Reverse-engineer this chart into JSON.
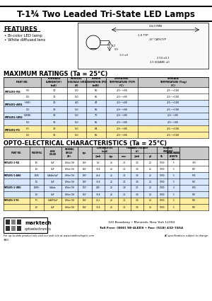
{
  "title": "T-1¾ Two Leaded Tri-State LED Lamps",
  "features": [
    "Bi-color LED lamp",
    "White diffused lens"
  ],
  "bg_color": "#ffffff",
  "max_ratings_title": "MAXIMUM RATINGS (Ta = 25°C)",
  "opto_title": "OPTO-ELECTRICAL CHARACTERISTICS (Ta = 25°C)",
  "max_ratings_rows": [
    [
      "MT5491-RG",
      "(R)",
      "30",
      "5.0",
      "85",
      "-25~+85",
      "-25~+100"
    ],
    [
      "",
      "(G)",
      "30",
      "5.0",
      "85",
      "-25~+85",
      "-25~+100"
    ],
    [
      "MT5491-ARG",
      "(HiR)",
      "30",
      "4.0",
      "47",
      "-25~+80",
      "-25~+100"
    ],
    [
      "",
      "(G)",
      "30",
      "5.0",
      "85",
      "-25~+80",
      "-25~+100"
    ],
    [
      "MT5491-URG",
      "(GRN)",
      "30",
      "5.0",
      "70",
      "-25~+85",
      "-25~+85"
    ],
    [
      "",
      "(G)",
      "30",
      "5.0",
      "85",
      "-25~+85",
      "-25~+85"
    ],
    [
      "MT5491-YG",
      "(Y)",
      "30",
      "5.0",
      "84",
      "-25~+85",
      "-25~+100"
    ],
    [
      "",
      "(G)",
      "30",
      "5.0",
      "85",
      "-25~+85",
      "-25~+100"
    ]
  ],
  "opto_rows": [
    [
      "MT5491-1-RG",
      "(R)",
      "GaP",
      "White Diff",
      "130°",
      "6.2",
      "20",
      "2.1",
      "3.0",
      "20",
      "1000",
      "5",
      "700"
    ],
    [
      "",
      "(G)",
      "GaP",
      "White Diff",
      "130°",
      "30.8",
      "20",
      "2.1",
      "3.0",
      "20",
      "1000",
      "5",
      "567"
    ],
    [
      "MT5491-1-ARG",
      "(HiR)",
      "GaAlAs/GaP",
      "White Diff",
      "130°",
      "26.4",
      "20",
      "2.1",
      "3.0",
      "20",
      "1000",
      "5",
      "635"
    ],
    [
      "",
      "(G)",
      "GaP",
      "White Diff",
      "130°",
      "30.8",
      "20",
      "2.1",
      "3.0",
      "20",
      "1000",
      "5",
      "567"
    ],
    [
      "MT5491-1-URG",
      "(GRN)",
      "GaAsIa",
      "White Diff",
      "110°",
      "240",
      "20",
      "1.8",
      "2.5",
      "20",
      "1000",
      "4",
      "660"
    ],
    [
      "",
      "(G)",
      "GaP",
      "White Diff",
      "110°",
      "30.8",
      "20",
      "2.1",
      "3.0",
      "20",
      "1000",
      "5",
      "567"
    ],
    [
      "MT5491-1-YG",
      "(Y)",
      "GaAlP/GaP",
      "White Diff",
      "130°",
      "25.2",
      "20",
      "2.1",
      "3.0",
      "20",
      "1000",
      "5",
      "585"
    ],
    [
      "",
      "(G)",
      "GaP",
      "White Diff",
      "130°",
      "30.8",
      "20",
      "2.1",
      "3.0",
      "20",
      "1000",
      "5",
      "567"
    ]
  ],
  "footer_address": "120 Broadway • Menands, New York 12204",
  "footer_phone": "Toll Free: (800) 98-4LEDS • Fax: (518) 432-7454",
  "footer_web": "For up-to-date product info visit our web site at www.marktechoptic.com",
  "footer_spec": "All specifications subject to change.",
  "footer_num": "360"
}
